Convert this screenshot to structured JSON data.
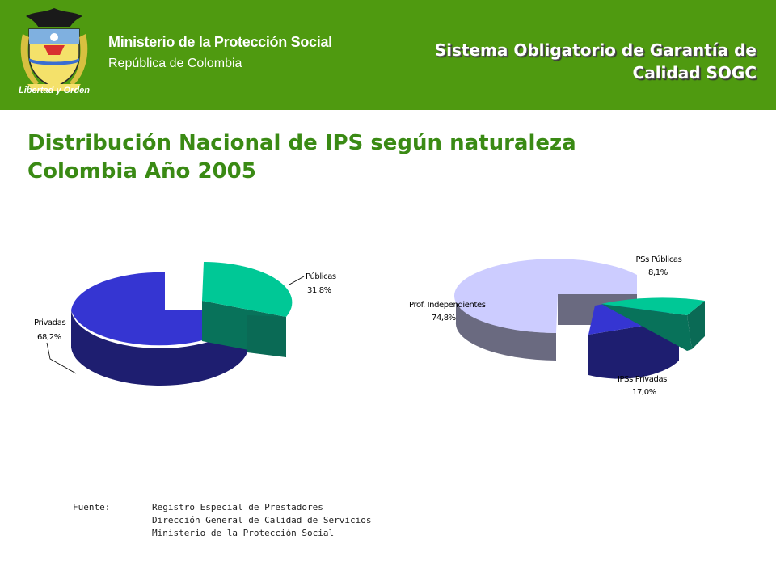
{
  "header": {
    "logo_text": "Libertad y Orden",
    "ministry": "Ministerio de la Protección Social",
    "republic": "República de Colombia",
    "system_title": "Sistema Obligatorio de Garantía de Calidad SOGC",
    "background_color": "#4f9a10"
  },
  "title": {
    "line1": "Distribución Nacional de IPS según naturaleza",
    "line2": "Colombia Año 2005",
    "color": "#3a8a14"
  },
  "chart_data": [
    {
      "type": "pie",
      "title": "",
      "style": "3d-exploded",
      "slices": [
        {
          "label": "Públicas",
          "value": 31.8,
          "display": "31,8%",
          "color": "#00c896"
        },
        {
          "label": "Privadas",
          "value": 68.2,
          "display": "68,2%",
          "color": "#3535d2"
        }
      ]
    },
    {
      "type": "pie",
      "title": "",
      "style": "3d-exploded",
      "slices": [
        {
          "label": "Prof. Independientes",
          "value": 74.8,
          "display": "74,8%",
          "color": "#ccccff"
        },
        {
          "label": "IPSs Públicas",
          "value": 8.1,
          "display": "8,1%",
          "color": "#00c896"
        },
        {
          "label": "IPSs Privadas",
          "value": 17.0,
          "display": "17,0%",
          "color": "#3535d2"
        }
      ]
    }
  ],
  "source": {
    "label": "Fuente:",
    "lines": [
      "Registro Especial de Prestadores",
      "Dirección General de Calidad de Servicios",
      "Ministerio de la Protección Social"
    ]
  }
}
